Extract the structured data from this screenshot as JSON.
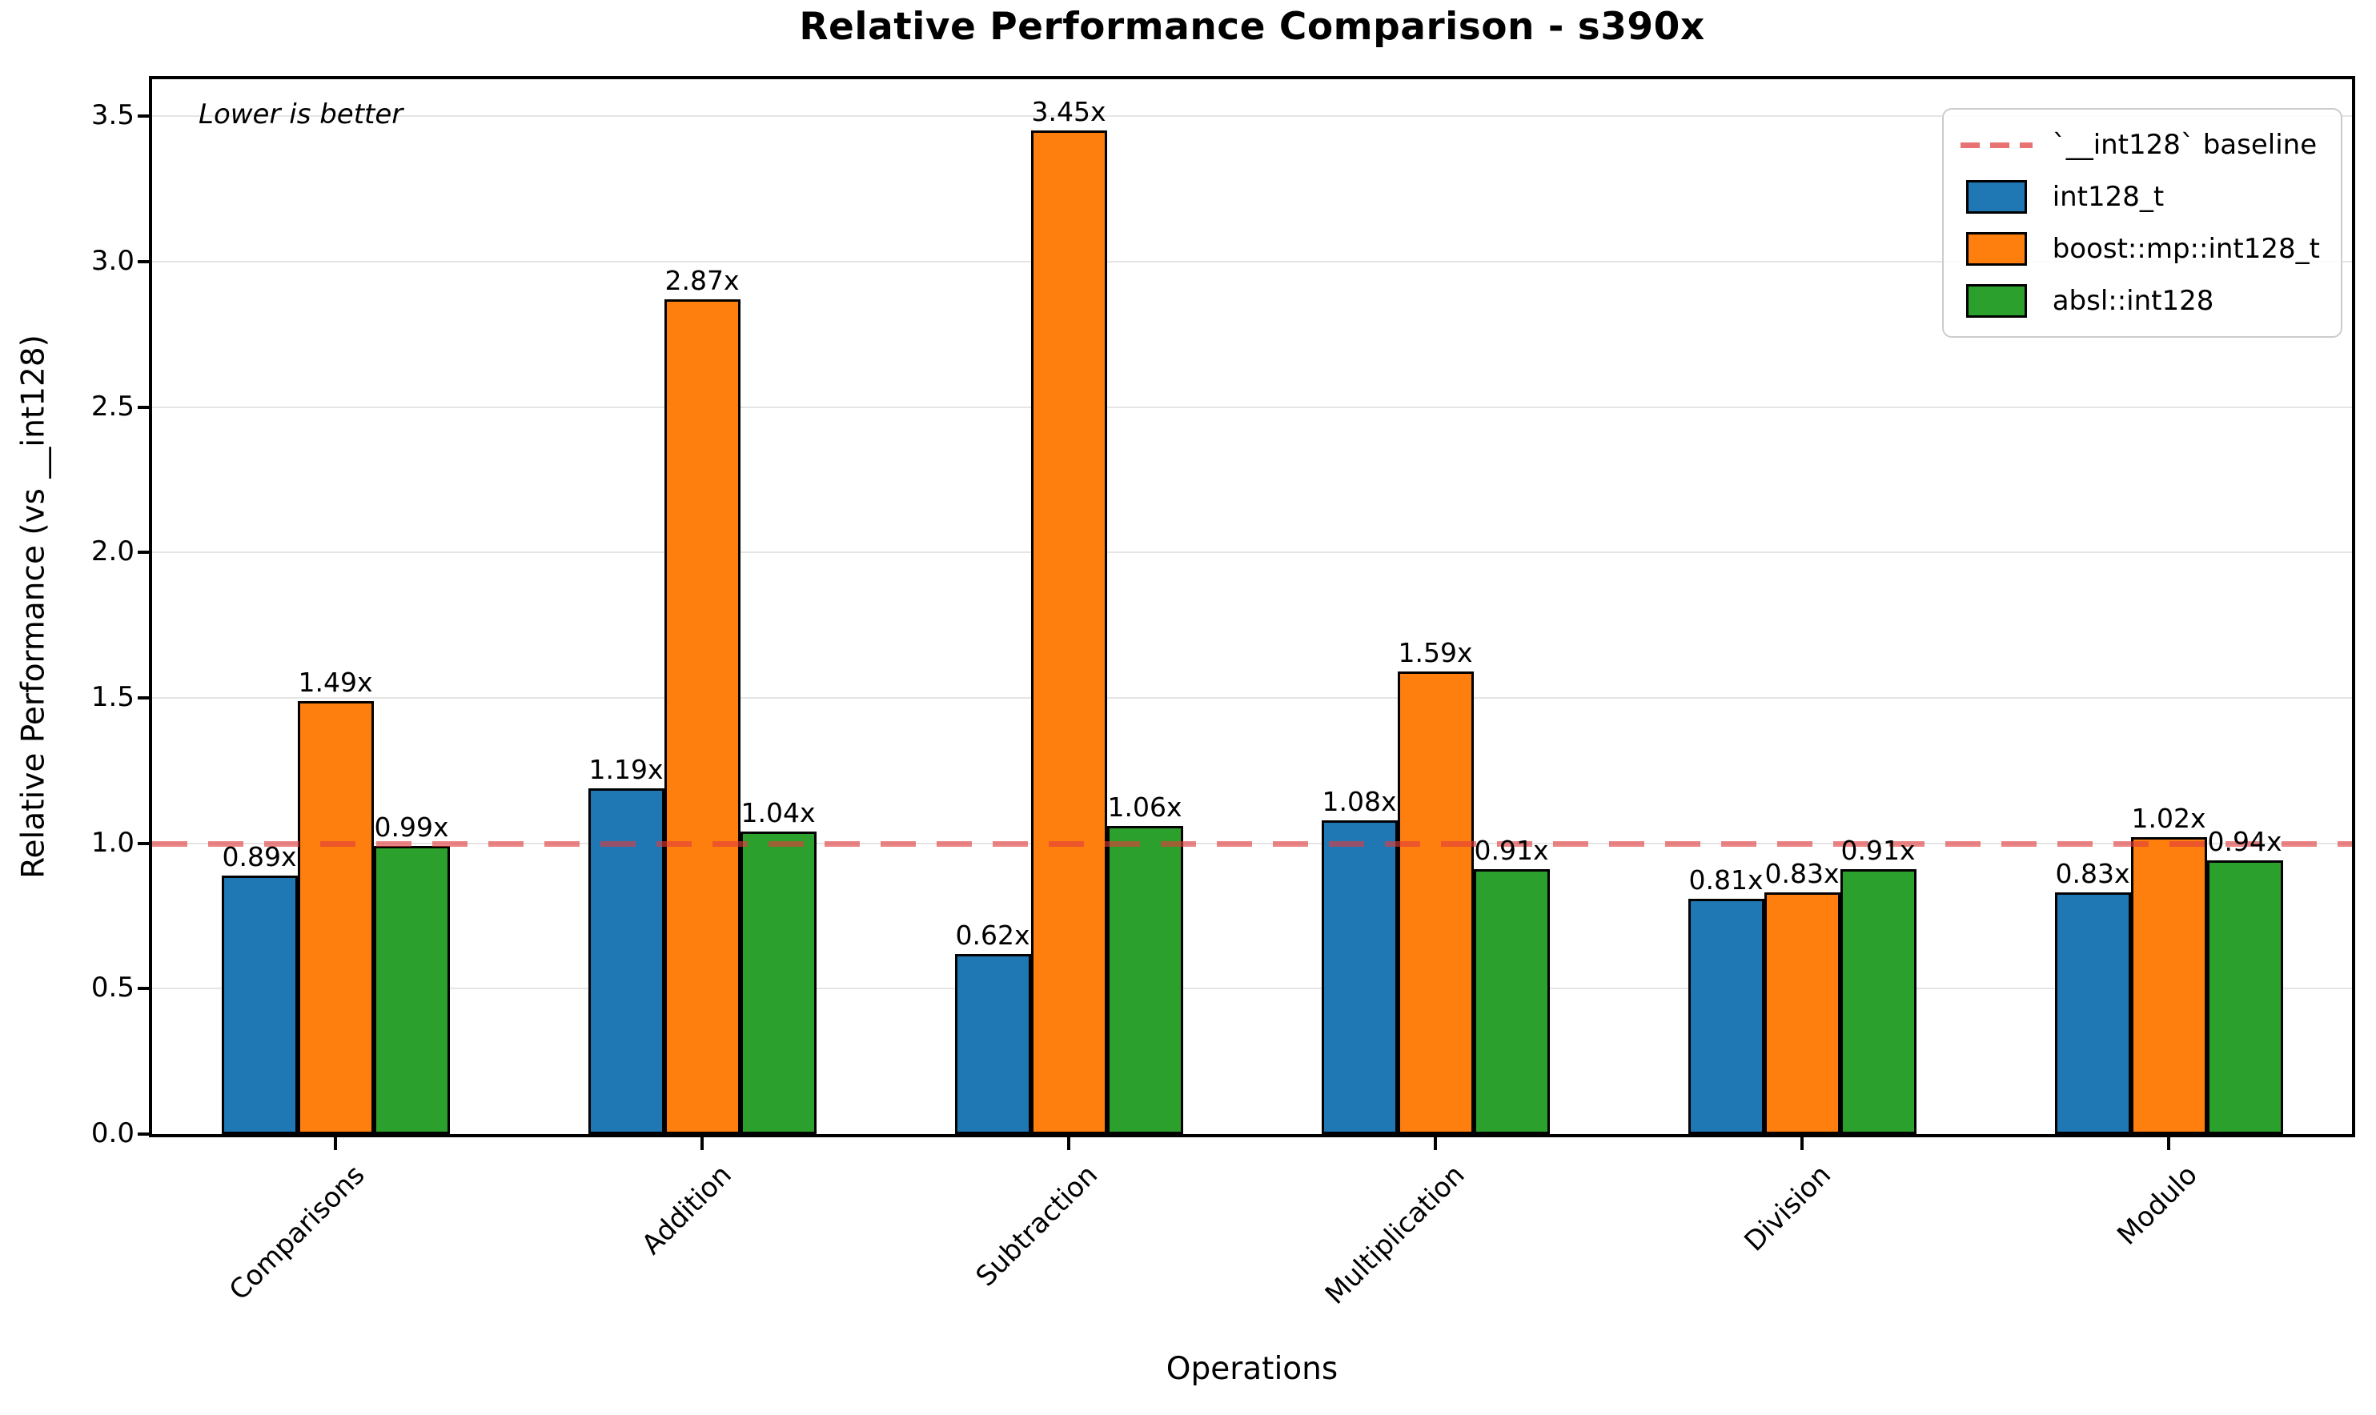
{
  "chart_data": {
    "type": "bar",
    "title": "Relative Performance Comparison - s390x",
    "xlabel": "Operations",
    "ylabel": "Relative Performance (vs __int128)",
    "annotation": "Lower is better",
    "categories": [
      "Comparisons",
      "Addition",
      "Subtraction",
      "Multiplication",
      "Division",
      "Modulo"
    ],
    "series": [
      {
        "name": "int128_t",
        "color": "#1f77b4",
        "values": [
          0.89,
          1.19,
          0.62,
          1.08,
          0.81,
          0.83
        ]
      },
      {
        "name": "boost::mp::int128_t",
        "color": "#ff7f0e",
        "values": [
          1.49,
          2.87,
          3.45,
          1.59,
          0.83,
          1.02
        ]
      },
      {
        "name": "absl::int128",
        "color": "#2ca02c",
        "values": [
          0.99,
          1.04,
          1.06,
          0.91,
          0.91,
          0.94
        ]
      }
    ],
    "bar_label_suffix": "x",
    "baseline": {
      "value": 1.0,
      "label": "`__int128` baseline",
      "color": "#e03c3c"
    },
    "yticks": [
      0.0,
      0.5,
      1.0,
      1.5,
      2.0,
      2.5,
      3.0,
      3.5
    ],
    "ylim": [
      0,
      3.627
    ],
    "grid": true,
    "legend_position": "upper right"
  }
}
